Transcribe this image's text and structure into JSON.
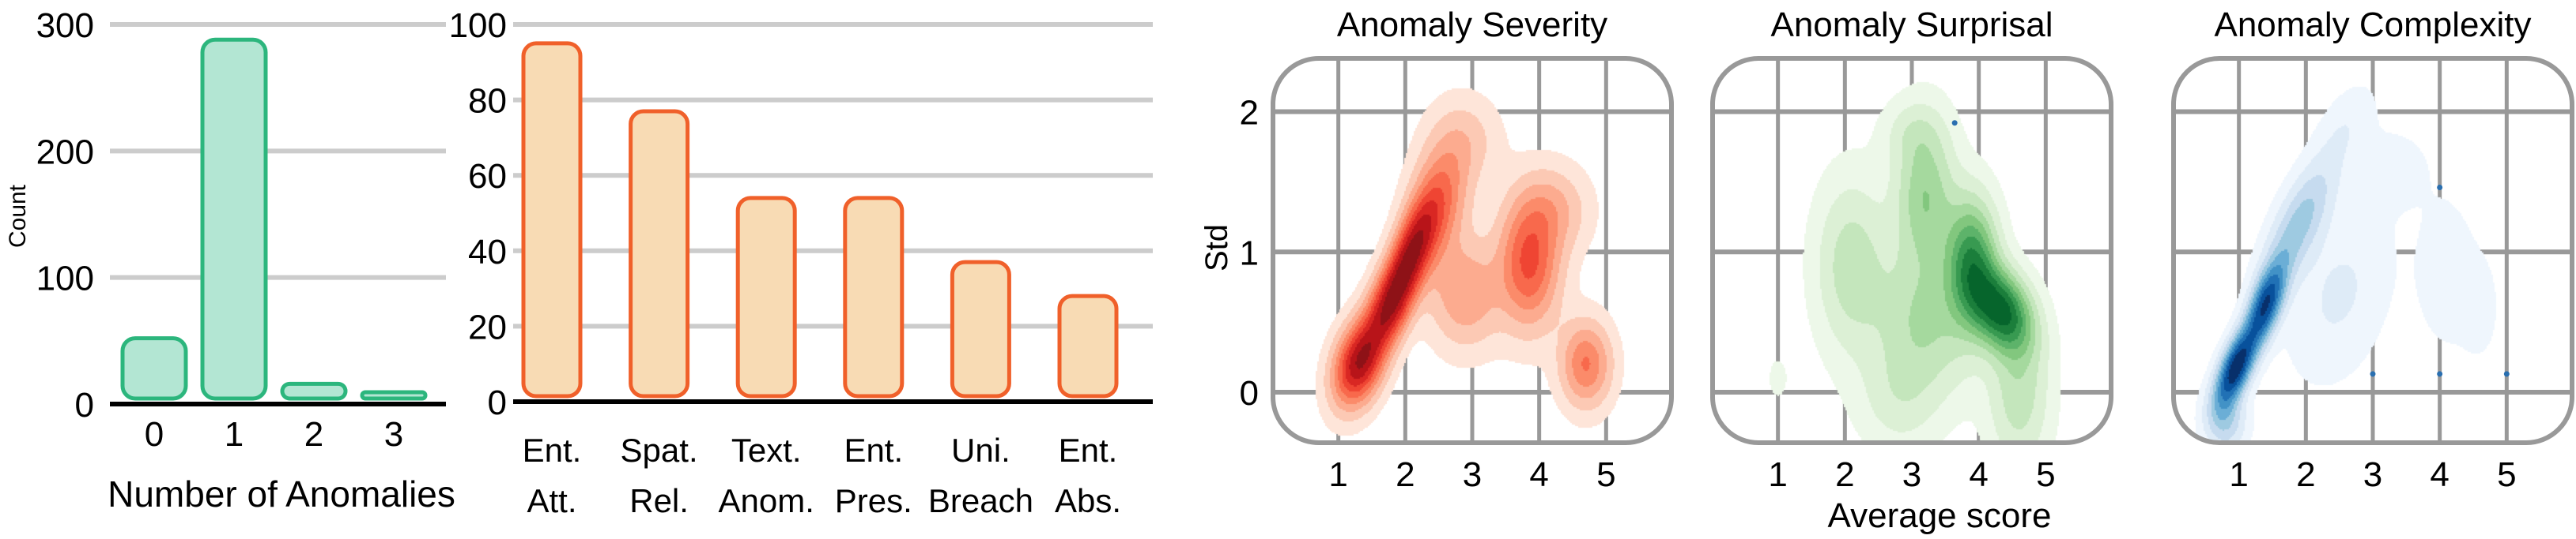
{
  "chart_data": [
    {
      "type": "bar",
      "xlabel": "Number of Anomalies",
      "ylabel": "Count",
      "categories": [
        "0",
        "1",
        "2",
        "3"
      ],
      "values": [
        52,
        288,
        16,
        5
      ],
      "ylim": [
        0,
        300
      ],
      "yticks": [
        0,
        100,
        200,
        300
      ],
      "grid": true,
      "colors": {
        "fill": "#b3e6d3",
        "stroke": "#2cb67d"
      }
    },
    {
      "type": "bar",
      "xlabel": "",
      "ylabel": "",
      "categories": [
        "Ent. Att.",
        "Spat. Rel.",
        "Text. Anom.",
        "Ent. Pres.",
        "Uni. Breach",
        "Ent. Abs."
      ],
      "values": [
        95,
        77,
        54,
        54,
        37,
        28
      ],
      "ylim": [
        0,
        100
      ],
      "yticks": [
        0,
        20,
        40,
        60,
        80,
        100
      ],
      "grid": true,
      "colors": {
        "fill": "#f8dbb4",
        "stroke": "#f0602a"
      }
    },
    {
      "type": "heatmap",
      "subtype": "kde-contour",
      "shared_xlabel": "Average score",
      "shared_ylabel": "Std",
      "xticks": [
        1,
        2,
        3,
        4,
        5
      ],
      "yticks": [
        0,
        1,
        2
      ],
      "xlim": [
        0,
        6
      ],
      "ylim": [
        -0.36,
        2.38
      ],
      "grid": true,
      "panels": [
        {
          "title": "Anomaly Severity",
          "colormap": [
            "#fee5d9",
            "#fcc9b4",
            "#fcab8f",
            "#fb8b6a",
            "#f8694c",
            "#ef4533",
            "#d92723",
            "#b81419",
            "#8e1217"
          ],
          "density_modes": [
            {
              "x": 1.3,
              "y": 0.2,
              "sx": 0.25,
              "sy": 0.2,
              "rho": 0.3,
              "w": 1.0
            },
            {
              "x": 1.75,
              "y": 0.6,
              "sx": 0.25,
              "sy": 0.22,
              "rho": 0.5,
              "w": 0.9
            },
            {
              "x": 2.1,
              "y": 1.0,
              "sx": 0.25,
              "sy": 0.25,
              "rho": 0.6,
              "w": 0.9
            },
            {
              "x": 2.5,
              "y": 1.35,
              "sx": 0.3,
              "sy": 0.3,
              "rho": 0.3,
              "w": 0.5
            },
            {
              "x": 2.9,
              "y": 1.8,
              "sx": 0.35,
              "sy": 0.2,
              "rho": 0,
              "w": 0.15
            },
            {
              "x": 3.85,
              "y": 0.92,
              "sx": 0.3,
              "sy": 0.3,
              "rho": 0,
              "w": 0.65
            },
            {
              "x": 4.2,
              "y": 1.3,
              "sx": 0.35,
              "sy": 0.2,
              "rho": 0,
              "w": 0.25
            },
            {
              "x": 4.7,
              "y": 0.2,
              "sx": 0.25,
              "sy": 0.2,
              "rho": 0,
              "w": 0.5
            },
            {
              "x": 2.9,
              "y": 0.7,
              "sx": 0.35,
              "sy": 0.25,
              "rho": 0,
              "w": 0.35
            }
          ],
          "outliers": []
        },
        {
          "title": "Anomaly Surprisal",
          "colormap": [
            "#edf8e9",
            "#dcf0d5",
            "#c4e6bc",
            "#a5d99e",
            "#82c77e",
            "#5db36a",
            "#389a51",
            "#1b7e3b",
            "#06652c"
          ],
          "density_modes": [
            {
              "x": 4.35,
              "y": 0.58,
              "sx": 0.3,
              "sy": 0.2,
              "rho": -0.3,
              "w": 1.0
            },
            {
              "x": 3.9,
              "y": 0.92,
              "sx": 0.25,
              "sy": 0.3,
              "rho": 0,
              "w": 0.8
            },
            {
              "x": 3.2,
              "y": 1.4,
              "sx": 0.3,
              "sy": 0.35,
              "rho": 0,
              "w": 0.45
            },
            {
              "x": 2.1,
              "y": 0.9,
              "sx": 0.35,
              "sy": 0.4,
              "rho": 0,
              "w": 0.3
            },
            {
              "x": 3.2,
              "y": 0.5,
              "sx": 0.5,
              "sy": 0.35,
              "rho": 0,
              "w": 0.35
            },
            {
              "x": 4.6,
              "y": 0.0,
              "sx": 0.3,
              "sy": 0.35,
              "rho": 0,
              "w": 0.3
            },
            {
              "x": 2.8,
              "y": -0.05,
              "sx": 0.4,
              "sy": 0.25,
              "rho": 0,
              "w": 0.15
            },
            {
              "x": 3.0,
              "y": 1.85,
              "sx": 0.3,
              "sy": 0.15,
              "rho": 0,
              "w": 0.12
            },
            {
              "x": 1.0,
              "y": 0.1,
              "sx": 0.12,
              "sy": 0.12,
              "rho": 0,
              "w": 0.06
            }
          ],
          "outliers": [
            {
              "x": 3.64,
              "y": 1.92
            }
          ]
        },
        {
          "title": "Anomaly Complexity",
          "colormap": [
            "#eff6fd",
            "#deebf7",
            "#c6dbef",
            "#9ecae1",
            "#6baed6",
            "#4292c6",
            "#2171b5",
            "#08519c",
            "#08306b"
          ],
          "density_modes": [
            {
              "x": 0.95,
              "y": 0.17,
              "sx": 0.2,
              "sy": 0.18,
              "rho": 0.6,
              "w": 1.0
            },
            {
              "x": 1.4,
              "y": 0.62,
              "sx": 0.2,
              "sy": 0.2,
              "rho": 0.6,
              "w": 0.85
            },
            {
              "x": 1.9,
              "y": 1.2,
              "sx": 0.35,
              "sy": 0.3,
              "rho": 0.7,
              "w": 0.35
            },
            {
              "x": 2.6,
              "y": 1.9,
              "sx": 0.3,
              "sy": 0.2,
              "rho": 0.5,
              "w": 0.08
            },
            {
              "x": 2.5,
              "y": 0.7,
              "sx": 0.5,
              "sy": 0.4,
              "rho": 0.3,
              "w": 0.12
            },
            {
              "x": 4.1,
              "y": 0.85,
              "sx": 0.3,
              "sy": 0.35,
              "rho": 0,
              "w": 0.08
            },
            {
              "x": 4.6,
              "y": 0.6,
              "sx": 0.2,
              "sy": 0.25,
              "rho": 0,
              "w": 0.06
            },
            {
              "x": 3.3,
              "y": 1.6,
              "sx": 0.4,
              "sy": 0.2,
              "rho": 0,
              "w": 0.06
            },
            {
              "x": 0.8,
              "y": -0.2,
              "sx": 0.2,
              "sy": 0.15,
              "rho": 0,
              "w": 0.3
            }
          ],
          "outliers": [
            {
              "x": 3,
              "y": 0.13
            },
            {
              "x": 4,
              "y": 0.13
            },
            {
              "x": 5,
              "y": 0.13
            },
            {
              "x": 4,
              "y": 1.46
            }
          ]
        }
      ]
    }
  ]
}
